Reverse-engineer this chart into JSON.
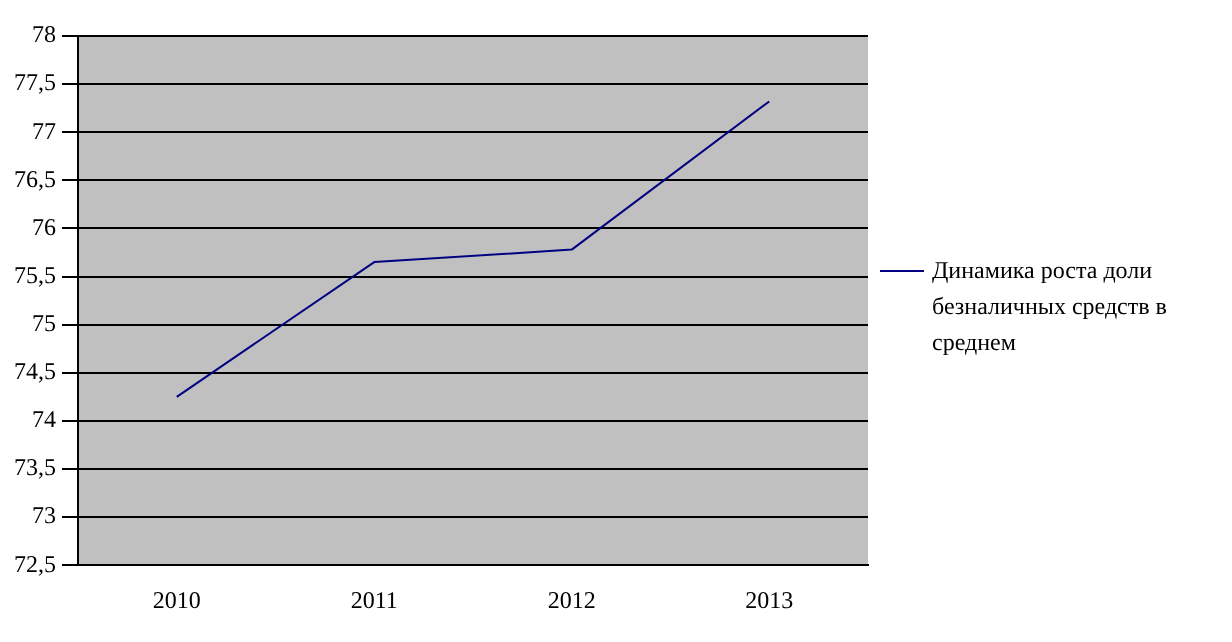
{
  "chart_data": {
    "type": "line",
    "categories": [
      "2010",
      "2011",
      "2012",
      "2013"
    ],
    "series": [
      {
        "name": "Динамика роста доли безналичных средств в среднем",
        "color": "#000080",
        "values": [
          74.25,
          75.65,
          75.78,
          77.32
        ]
      }
    ],
    "ylim": [
      72.5,
      78
    ],
    "yticks": [
      {
        "value": 72.5,
        "label": "72,5"
      },
      73,
      {
        "value": 73.5,
        "label": "73,5"
      },
      74,
      {
        "value": 74.5,
        "label": "74,5"
      },
      75,
      {
        "value": 75.5,
        "label": "75,5"
      },
      76,
      {
        "value": 76.5,
        "label": "76,5"
      },
      77,
      {
        "value": 77.5,
        "label": "77,5"
      },
      78
    ],
    "grid": "y",
    "legend": "right",
    "marker": "none"
  }
}
